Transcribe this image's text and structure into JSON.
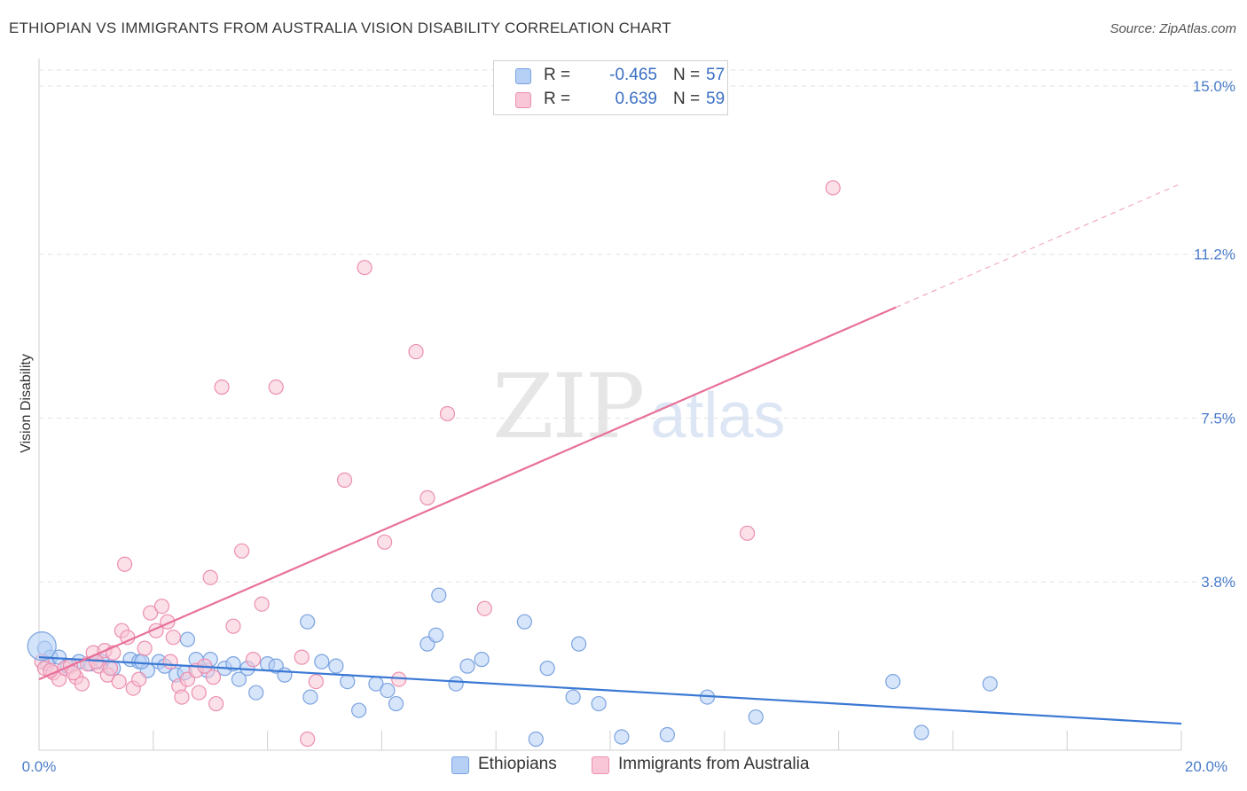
{
  "title": "ETHIOPIAN VS IMMIGRANTS FROM AUSTRALIA VISION DISABILITY CORRELATION CHART",
  "source": "Source: ZipAtlas.com",
  "watermark": {
    "zip": "ZIP",
    "atlas": "atlas"
  },
  "colors": {
    "blue_fill": "#b6d0f5",
    "blue_stroke": "#7aa3e0",
    "blue_line": "#3a78d4",
    "pink_fill": "#f8c6d6",
    "pink_stroke": "#ec8fb0",
    "pink_line": "#e8709a",
    "tick_text": "#4a7cc9",
    "grid": "#e2e2e2"
  },
  "legend": {
    "rows": [
      {
        "r_label": "R =",
        "r_value": "-0.465",
        "n_label": "N =",
        "n_value": "57"
      },
      {
        "r_label": "R =",
        "r_value": "0.639",
        "n_label": "N =",
        "n_value": "59"
      }
    ]
  },
  "bottom_legend": [
    "Ethiopians",
    "Immigrants from Australia"
  ],
  "chart_data": {
    "type": "scatter",
    "title": "ETHIOPIAN VS IMMIGRANTS FROM AUSTRALIA VISION DISABILITY CORRELATION CHART",
    "xlabel": "",
    "ylabel": "Vision Disability",
    "xlim": [
      0,
      20
    ],
    "ylim": [
      0,
      15.5
    ],
    "x_tick_labels": [
      "0.0%",
      "20.0%"
    ],
    "y_ticks": [
      3.8,
      7.5,
      11.2,
      15.0
    ],
    "y_tick_labels": [
      "3.8%",
      "7.5%",
      "11.2%",
      "15.0%"
    ],
    "grid": true,
    "legend_placement": "top-center",
    "series": [
      {
        "name": "Ethiopians",
        "trend": {
          "x0": 0,
          "y0": 2.1,
          "x1": 20,
          "y1": 0.6
        },
        "points": [
          [
            0.1,
            2.3
          ],
          [
            0.2,
            2.1
          ],
          [
            0.35,
            2.1
          ],
          [
            0.5,
            1.9
          ],
          [
            0.7,
            2.0
          ],
          [
            0.9,
            1.95
          ],
          [
            1.1,
            2.0
          ],
          [
            1.3,
            1.85
          ],
          [
            1.6,
            2.05
          ],
          [
            1.75,
            2.0
          ],
          [
            1.9,
            1.8
          ],
          [
            2.1,
            2.0
          ],
          [
            2.2,
            1.9
          ],
          [
            2.4,
            1.7
          ],
          [
            2.6,
            2.5
          ],
          [
            2.75,
            2.05
          ],
          [
            2.95,
            1.8
          ],
          [
            3.0,
            2.05
          ],
          [
            3.25,
            1.85
          ],
          [
            3.4,
            1.95
          ],
          [
            3.5,
            1.6
          ],
          [
            3.65,
            1.85
          ],
          [
            3.8,
            1.3
          ],
          [
            4.0,
            1.95
          ],
          [
            4.15,
            1.9
          ],
          [
            4.3,
            1.7
          ],
          [
            4.7,
            2.9
          ],
          [
            4.75,
            1.2
          ],
          [
            4.95,
            2.0
          ],
          [
            5.2,
            1.9
          ],
          [
            5.4,
            1.55
          ],
          [
            5.6,
            0.9
          ],
          [
            5.9,
            1.5
          ],
          [
            6.1,
            1.35
          ],
          [
            6.25,
            1.05
          ],
          [
            6.8,
            2.4
          ],
          [
            6.95,
            2.6
          ],
          [
            7.0,
            3.5
          ],
          [
            7.3,
            1.5
          ],
          [
            7.5,
            1.9
          ],
          [
            7.75,
            2.05
          ],
          [
            8.5,
            2.9
          ],
          [
            8.7,
            0.25
          ],
          [
            8.9,
            1.85
          ],
          [
            9.35,
            1.2
          ],
          [
            9.45,
            2.4
          ],
          [
            9.8,
            1.05
          ],
          [
            10.2,
            0.3
          ],
          [
            11.0,
            0.35
          ],
          [
            11.7,
            1.2
          ],
          [
            12.55,
            0.75
          ],
          [
            14.95,
            1.55
          ],
          [
            15.45,
            0.4
          ],
          [
            16.65,
            1.5
          ],
          [
            0.15,
            1.95
          ],
          [
            1.8,
            2.0
          ],
          [
            2.55,
            1.75
          ]
        ]
      },
      {
        "name": "Immigrants from Australia",
        "trend": {
          "x0": 0,
          "y0": 1.6,
          "x1": 15.0,
          "y1": 10.0,
          "dashed_to_x": 20,
          "dashed_to_y": 12.8
        },
        "points": [
          [
            0.05,
            2.0
          ],
          [
            0.1,
            1.85
          ],
          [
            0.25,
            1.75
          ],
          [
            0.35,
            1.6
          ],
          [
            0.45,
            1.85
          ],
          [
            0.55,
            1.9
          ],
          [
            0.65,
            1.65
          ],
          [
            0.75,
            1.5
          ],
          [
            0.85,
            1.95
          ],
          [
            0.95,
            2.2
          ],
          [
            1.05,
            1.9
          ],
          [
            1.15,
            2.25
          ],
          [
            1.2,
            1.7
          ],
          [
            1.3,
            2.2
          ],
          [
            1.4,
            1.55
          ],
          [
            1.45,
            2.7
          ],
          [
            1.55,
            2.55
          ],
          [
            1.65,
            1.4
          ],
          [
            1.75,
            1.6
          ],
          [
            1.85,
            2.3
          ],
          [
            1.95,
            3.1
          ],
          [
            2.05,
            2.7
          ],
          [
            2.15,
            3.25
          ],
          [
            2.25,
            2.9
          ],
          [
            2.35,
            2.55
          ],
          [
            2.45,
            1.45
          ],
          [
            2.5,
            1.2
          ],
          [
            2.6,
            1.6
          ],
          [
            2.75,
            1.8
          ],
          [
            2.9,
            1.9
          ],
          [
            3.0,
            3.9
          ],
          [
            3.1,
            1.05
          ],
          [
            3.2,
            8.2
          ],
          [
            3.4,
            2.8
          ],
          [
            3.55,
            4.5
          ],
          [
            3.75,
            2.05
          ],
          [
            3.9,
            3.3
          ],
          [
            4.15,
            8.2
          ],
          [
            4.6,
            2.1
          ],
          [
            4.7,
            0.25
          ],
          [
            4.85,
            1.55
          ],
          [
            5.35,
            6.1
          ],
          [
            5.7,
            10.9
          ],
          [
            6.05,
            4.7
          ],
          [
            6.3,
            1.6
          ],
          [
            6.6,
            9.0
          ],
          [
            6.8,
            5.7
          ],
          [
            7.15,
            7.6
          ],
          [
            7.8,
            3.2
          ],
          [
            12.4,
            4.9
          ],
          [
            13.9,
            12.7
          ],
          [
            1.5,
            4.2
          ],
          [
            1.0,
            2.0
          ],
          [
            2.8,
            1.3
          ],
          [
            0.2,
            1.8
          ],
          [
            0.6,
            1.75
          ],
          [
            1.25,
            1.85
          ],
          [
            2.3,
            2.0
          ],
          [
            3.05,
            1.65
          ]
        ]
      }
    ]
  }
}
